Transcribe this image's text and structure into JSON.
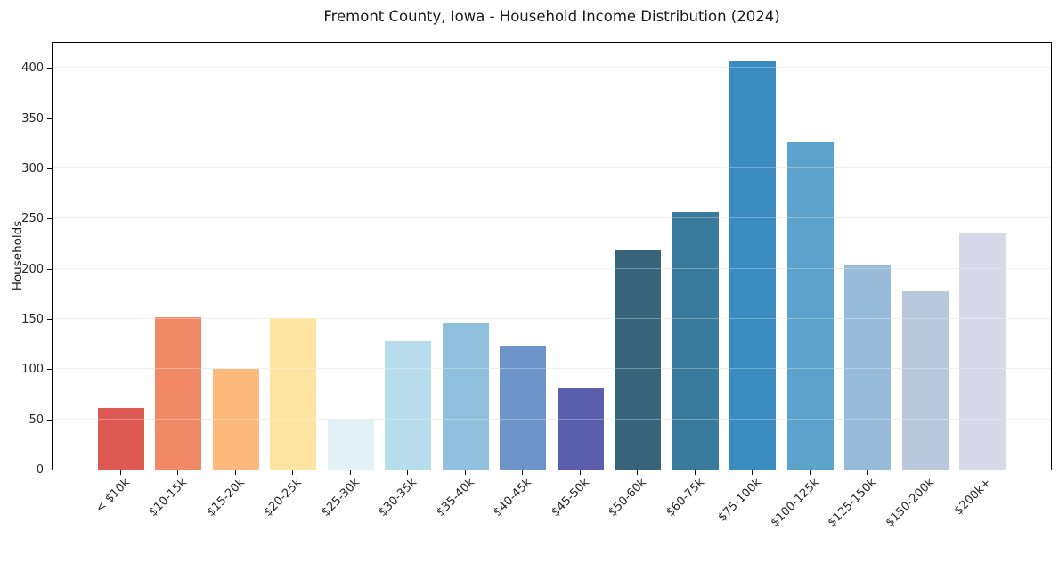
{
  "chart_data": {
    "type": "bar",
    "title": "Fremont County, Iowa - Household Income Distribution (2024)",
    "xlabel": "",
    "ylabel": "Households",
    "categories": [
      "< $10k",
      "$10-15k",
      "$15-20k",
      "$20-25k",
      "$25-30k",
      "$30-35k",
      "$35-40k",
      "$40-45k",
      "$45-50k",
      "$50-60k",
      "$60-75k",
      "$75-100k",
      "$100-125k",
      "$125-150k",
      "$150-200k",
      "$200k+"
    ],
    "values": [
      61,
      152,
      100,
      151,
      50,
      128,
      146,
      123,
      81,
      218,
      257,
      407,
      327,
      204,
      178,
      236
    ],
    "bar_colors": [
      "#dc5a52",
      "#f28966",
      "#fbb97b",
      "#fde5a1",
      "#e3f1f7",
      "#b7dcec",
      "#8fc1de",
      "#6e95ca",
      "#5a5eac",
      "#37637b",
      "#3a7a9d",
      "#3a8cc0",
      "#5ba3cb",
      "#96bad8",
      "#bac8de",
      "#d8d9e8"
    ],
    "yticks": [
      0,
      50,
      100,
      150,
      200,
      250,
      300,
      350,
      400
    ],
    "ylim": [
      0,
      427
    ],
    "grid": "horizontal",
    "legend": "none",
    "x_tick_rotation_deg": 45
  },
  "colors": {
    "background": "#ffffff",
    "grid": "#e9e9e9",
    "spine": "#000000",
    "text": "#262626"
  }
}
